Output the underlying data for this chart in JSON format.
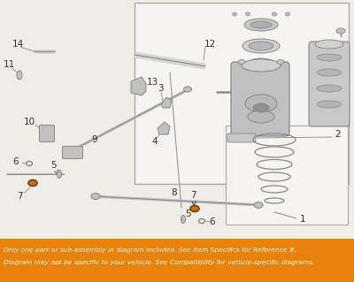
{
  "bg_color": "#f0ede8",
  "line_color": "#888888",
  "part_color": "#cccccc",
  "highlight_color": "#c87020",
  "text_color": "#333333",
  "orange_bg": "#e8820a",
  "orange_text": "#ffffff",
  "footer_line1": "Only one part or sub-assembly in diagram included. See Item Specifics for Reference #.",
  "footer_line2": "Diagram may not be specific to your vehicle. See Compatibility for vehicle-specific diagrams.",
  "figsize": [
    4.0,
    3.19
  ],
  "dpi": 100
}
